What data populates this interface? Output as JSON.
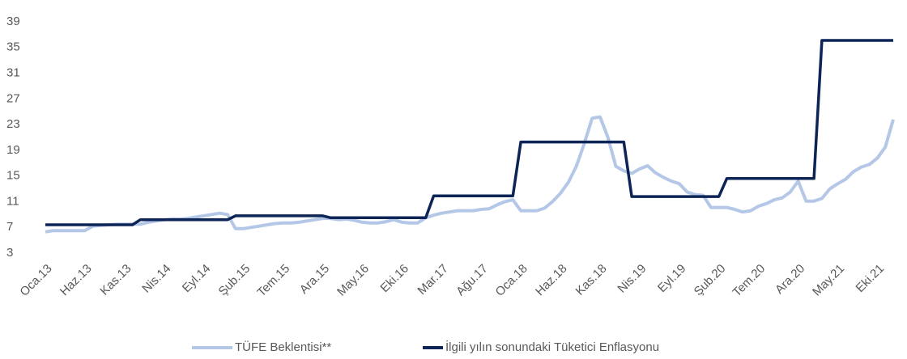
{
  "chart_data": {
    "type": "line",
    "categories": [
      "Oca.13",
      null,
      null,
      null,
      null,
      "Haz.13",
      null,
      null,
      null,
      null,
      "Kas.13",
      null,
      null,
      null,
      null,
      "Nis.14",
      null,
      null,
      null,
      null,
      "Eyl.14",
      null,
      null,
      null,
      null,
      "Şub.15",
      null,
      null,
      null,
      null,
      "Tem.15",
      null,
      null,
      null,
      null,
      "Ara.15",
      null,
      null,
      null,
      null,
      "May.16",
      null,
      null,
      null,
      null,
      "Eki.16",
      null,
      null,
      null,
      null,
      "Mar.17",
      null,
      null,
      null,
      null,
      "Ağu.17",
      null,
      null,
      null,
      null,
      "Oca.18",
      null,
      null,
      null,
      null,
      "Haz.18",
      null,
      null,
      null,
      null,
      "Kas.18",
      null,
      null,
      null,
      null,
      "Nis.19",
      null,
      null,
      null,
      null,
      "Eyl.19",
      null,
      null,
      null,
      null,
      "Şub.20",
      null,
      null,
      null,
      null,
      "Tem.20",
      null,
      null,
      null,
      null,
      "Ara.20",
      null,
      null,
      null,
      null,
      "May.21",
      null,
      null,
      null,
      null,
      "Eki.21",
      null,
      null
    ],
    "series": [
      {
        "name": "TÜFE Beklentisi**",
        "color": "#b4c7e7",
        "values": [
          6.3,
          6.5,
          6.5,
          6.5,
          6.5,
          6.5,
          7.2,
          7.3,
          7.4,
          7.5,
          7.5,
          7.5,
          7.5,
          7.8,
          8.0,
          8.2,
          8.3,
          8.3,
          8.4,
          8.6,
          8.8,
          9.0,
          9.2,
          9.0,
          6.8,
          6.8,
          7.0,
          7.2,
          7.4,
          7.6,
          7.7,
          7.7,
          7.8,
          8.0,
          8.2,
          8.4,
          8.4,
          8.2,
          8.3,
          8.1,
          7.8,
          7.7,
          7.7,
          7.9,
          8.2,
          7.8,
          7.7,
          7.7,
          8.5,
          8.9,
          9.2,
          9.4,
          9.6,
          9.6,
          9.6,
          9.8,
          9.9,
          10.5,
          11.0,
          11.3,
          9.6,
          9.6,
          9.6,
          10.0,
          11.0,
          12.3,
          14.0,
          16.5,
          20.0,
          24.0,
          24.2,
          21.0,
          16.5,
          15.8,
          15.4,
          16.1,
          16.6,
          15.5,
          14.8,
          14.2,
          13.8,
          12.5,
          12.1,
          12.0,
          10.1,
          10.1,
          10.1,
          9.8,
          9.4,
          9.6,
          10.3,
          10.7,
          11.3,
          11.6,
          12.5,
          14.2,
          11.1,
          11.1,
          11.5,
          13.0,
          13.8,
          14.5,
          15.7,
          16.4,
          16.8,
          17.8,
          19.5,
          23.8
        ]
      },
      {
        "name": "İlgili yılın sonundaki Tüketici Enflasyonu",
        "color": "#0c2456",
        "values": [
          7.4,
          7.4,
          7.4,
          7.4,
          7.4,
          7.4,
          7.4,
          7.4,
          7.4,
          7.4,
          7.4,
          7.4,
          8.2,
          8.2,
          8.2,
          8.2,
          8.2,
          8.2,
          8.2,
          8.2,
          8.2,
          8.2,
          8.2,
          8.2,
          8.8,
          8.8,
          8.8,
          8.8,
          8.8,
          8.8,
          8.8,
          8.8,
          8.8,
          8.8,
          8.8,
          8.8,
          8.5,
          8.5,
          8.5,
          8.5,
          8.5,
          8.5,
          8.5,
          8.5,
          8.5,
          8.5,
          8.5,
          8.5,
          8.5,
          11.9,
          11.9,
          11.9,
          11.9,
          11.9,
          11.9,
          11.9,
          11.9,
          11.9,
          11.9,
          11.9,
          20.3,
          20.3,
          20.3,
          20.3,
          20.3,
          20.3,
          20.3,
          20.3,
          20.3,
          20.3,
          20.3,
          20.3,
          20.3,
          20.3,
          11.8,
          11.8,
          11.8,
          11.8,
          11.8,
          11.8,
          11.8,
          11.8,
          11.8,
          11.8,
          11.8,
          11.8,
          14.6,
          14.6,
          14.6,
          14.6,
          14.6,
          14.6,
          14.6,
          14.6,
          14.6,
          14.6,
          14.6,
          14.6,
          36.1,
          36.1,
          36.1,
          36.1,
          36.1,
          36.1,
          36.1,
          36.1,
          36.1,
          36.1
        ]
      }
    ],
    "ylim": [
      3,
      39
    ],
    "yticks": [
      3,
      7,
      11,
      15,
      19,
      23,
      27,
      31,
      35,
      39
    ],
    "grid": false,
    "legend": "bottom"
  }
}
